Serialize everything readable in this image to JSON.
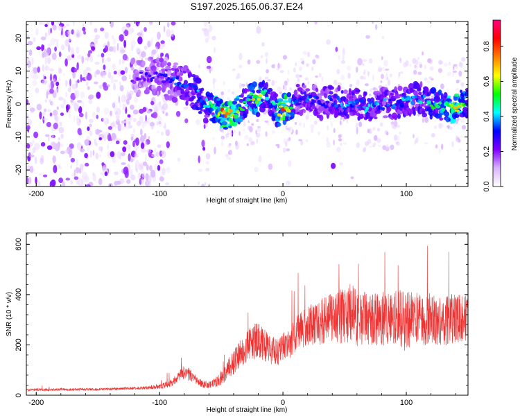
{
  "chart_data": [
    {
      "type": "heatmap",
      "title": "S197.2025.165.06.37.E24",
      "xlabel": "Height of straight line (km)",
      "ylabel": "Frequency (Hz)",
      "xlim": [
        -208,
        150
      ],
      "ylim": [
        -25,
        25
      ],
      "x_ticks": [
        -200,
        -100,
        0,
        100
      ],
      "y_ticks": [
        -20,
        -10,
        0,
        10,
        20
      ],
      "grid": false,
      "colorbar": {
        "label": "Normalized spectral amplitude",
        "range": [
          0.0,
          0.95
        ],
        "ticks": [
          0.0,
          0.2,
          0.4,
          0.6,
          0.8
        ],
        "tick_labels": [
          "0.0",
          "0.2",
          "0.4",
          "0.6",
          "0.8"
        ],
        "colormap": [
          "#ffffff",
          "#d9b3ff",
          "#8000ff",
          "#0000ff",
          "#00ffff",
          "#00ff00",
          "#ffff00",
          "#ff8000",
          "#ff0000",
          "#ff0080"
        ]
      },
      "ridge": {
        "x": [
          -120,
          -110,
          -100,
          -90,
          -80,
          -70,
          -60,
          -55,
          -50,
          -45,
          -40,
          -35,
          -30,
          -25,
          -20,
          -15,
          -10,
          -5,
          0,
          5,
          10,
          20,
          30,
          40,
          50,
          60,
          70,
          80,
          90,
          100,
          110,
          120,
          130,
          140,
          150
        ],
        "y": [
          8,
          9,
          8,
          7,
          6,
          4,
          -1,
          -2,
          -3,
          -3,
          -3,
          -2,
          1,
          2,
          1,
          3,
          0,
          -2,
          -2,
          -1,
          1,
          2,
          0,
          1,
          0,
          0,
          -1,
          0,
          0,
          1,
          2,
          0,
          -1,
          -1,
          1
        ],
        "amplitude": [
          0.25,
          0.3,
          0.32,
          0.35,
          0.4,
          0.45,
          0.5,
          0.7,
          0.85,
          0.9,
          0.85,
          0.6,
          0.5,
          0.7,
          0.75,
          0.5,
          0.45,
          0.6,
          0.95,
          0.7,
          0.4,
          0.4,
          0.35,
          0.4,
          0.45,
          0.4,
          0.45,
          0.4,
          0.4,
          0.45,
          0.45,
          0.55,
          0.6,
          0.8,
          0.5
        ]
      }
    },
    {
      "type": "line",
      "title": "",
      "xlabel": "Height of straight line (km)",
      "ylabel": "SNR (10 * v/v)",
      "xlim": [
        -208,
        150
      ],
      "ylim": [
        0,
        645
      ],
      "x_ticks": [
        -200,
        -100,
        0,
        100
      ],
      "y_ticks": [
        0,
        200,
        400,
        600
      ],
      "grid": false,
      "series_color": "#ee3333",
      "series": [
        {
          "x": [
            -208,
            -200,
            -190,
            -180,
            -170,
            -160,
            -150,
            -140,
            -130,
            -120,
            -110,
            -100,
            -95,
            -90,
            -85,
            -80,
            -75,
            -70,
            -65,
            -60,
            -55,
            -50,
            -45,
            -40,
            -35,
            -30,
            -25,
            -20,
            -15,
            -10,
            -5,
            0,
            5,
            10,
            15,
            20,
            25,
            30,
            35,
            40,
            45,
            50,
            55,
            60,
            65,
            70,
            75,
            80,
            85,
            90,
            95,
            100,
            105,
            110,
            115,
            120,
            125,
            130,
            135,
            140,
            145,
            150
          ],
          "values": [
            20,
            22,
            21,
            23,
            22,
            24,
            23,
            25,
            26,
            28,
            30,
            35,
            40,
            50,
            70,
            90,
            80,
            60,
            45,
            40,
            50,
            70,
            100,
            130,
            160,
            190,
            210,
            220,
            200,
            180,
            170,
            190,
            210,
            240,
            260,
            280,
            285,
            290,
            300,
            310,
            305,
            320,
            330,
            300,
            310,
            295,
            300,
            310,
            300,
            320,
            300,
            290,
            310,
            300,
            295,
            305,
            300,
            290,
            300,
            310,
            305,
            310
          ],
          "spread": [
            10,
            10,
            10,
            10,
            10,
            10,
            10,
            10,
            10,
            12,
            15,
            20,
            25,
            30,
            45,
            60,
            50,
            35,
            30,
            30,
            40,
            60,
            80,
            100,
            110,
            120,
            160,
            140,
            130,
            120,
            110,
            120,
            130,
            140,
            150,
            160,
            170,
            180,
            190,
            200,
            220,
            240,
            260,
            230,
            220,
            200,
            210,
            220,
            220,
            230,
            240,
            230,
            220,
            210,
            200,
            210,
            200,
            190,
            200,
            200,
            190,
            190
          ]
        }
      ]
    }
  ]
}
